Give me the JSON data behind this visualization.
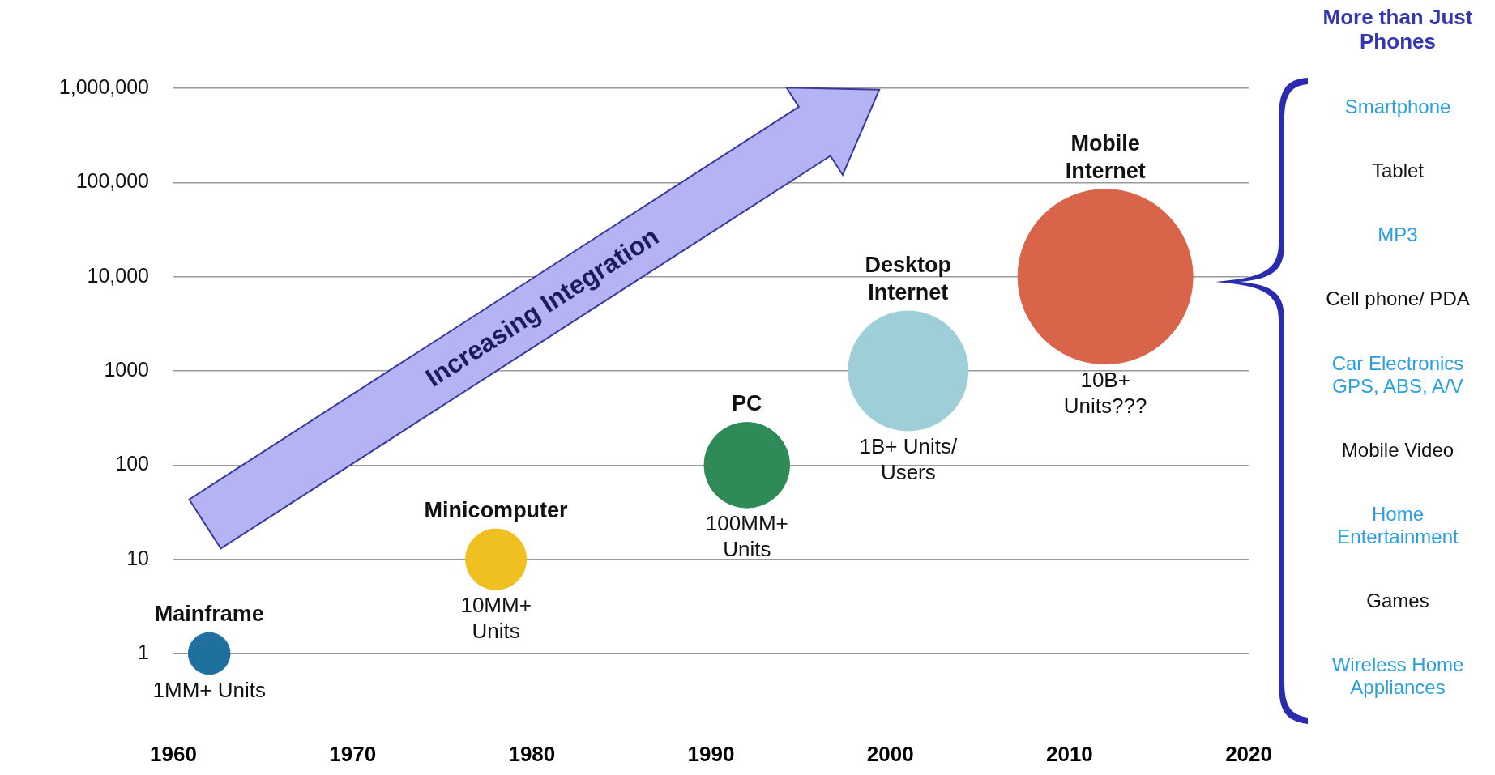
{
  "chart_data": {
    "type": "bubble",
    "log": "y",
    "grid": "y",
    "legend": false,
    "xlim": [
      1960,
      2020
    ],
    "xticks": [
      1960,
      1970,
      1980,
      1990,
      2000,
      2010,
      2020
    ],
    "ylim": [
      1,
      1000000
    ],
    "yticks": [
      1,
      10,
      100,
      1000,
      {
        "value": 10000,
        "label": "10,000"
      },
      {
        "value": 100000,
        "label": "100,000"
      },
      {
        "value": 1000000,
        "label": "1,000,000"
      }
    ],
    "series": [
      {
        "name": "Mainframe",
        "color": "#1f6f9f",
        "x": [
          1962
        ],
        "values": [
          1
        ],
        "sizes": [
          0.057
        ]
      },
      {
        "name": "Minicomputer",
        "color": "#f0c020",
        "x": [
          1978
        ],
        "values": [
          10
        ],
        "sizes": [
          0.121
        ]
      },
      {
        "name": "PC",
        "color": "#2e8b57",
        "x": [
          1992
        ],
        "values": [
          100
        ],
        "sizes": [
          0.239
        ]
      },
      {
        "name": "Desktop Internet",
        "color": "#9ecfd8",
        "x": [
          2001
        ],
        "values": [
          1000
        ],
        "sizes": [
          0.469
        ]
      },
      {
        "name": "Mobile Internet",
        "color": "#d8644a",
        "x": [
          2012
        ],
        "values": [
          10000
        ],
        "sizes": [
          1
        ]
      }
    ],
    "annotations": [
      "1MM+ Units",
      "10MM+ Units",
      "100MM+ Units",
      "1B+ Units/ Users",
      "10B+ Units???",
      "Increasing Integration",
      "More than Just Phones",
      "Smartphone",
      "Tablet",
      "MP3",
      "Cell phone/ PDA",
      "Car Electronics GPS, ABS, A/V",
      "Mobile Video",
      "Home Entertainment",
      "Games",
      "Wireless Home Appliances"
    ]
  }
}
